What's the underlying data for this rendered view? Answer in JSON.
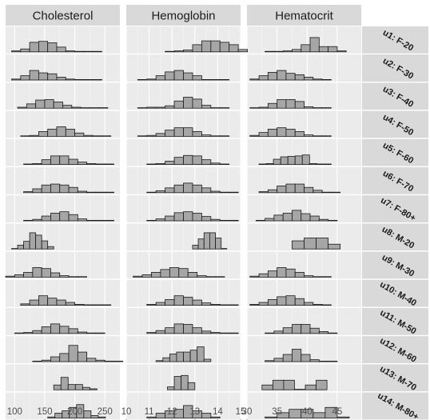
{
  "chart_data": {
    "type": "histogram-facet-grid",
    "columns": [
      {
        "label": "Cholesterol",
        "xlim": [
          85,
          275
        ],
        "ticks": [
          100,
          150,
          200,
          250
        ]
      },
      {
        "label": "Hemoglobin",
        "xlim": [
          10,
          15
        ],
        "ticks": [
          10,
          11,
          12,
          13,
          14,
          15
        ]
      },
      {
        "label": "Hematocrit",
        "xlim": [
          30,
          49
        ],
        "ticks": [
          30,
          35,
          40,
          45
        ]
      }
    ],
    "rows": [
      "u1: F-20",
      "u2: F-30",
      "u3: F-40",
      "u4: F-50",
      "u5: F-60",
      "u6: F-70",
      "u7: F-80+",
      "u8: M-20",
      "u9: M-30",
      "u10: M-40",
      "u11: M-50",
      "u12: M-60",
      "u13: M-70",
      "u14: M-80+"
    ],
    "max_relative_height": 1.0,
    "series": [
      {
        "row": "u1: F-20",
        "column": "Cholesterol",
        "x0": 95,
        "binwidth": 15,
        "counts": [
          0.04,
          0.12,
          0.4,
          0.44,
          0.38,
          0.2,
          0.04,
          0.02,
          0.02,
          0.02
        ]
      },
      {
        "row": "u1: F-20",
        "column": "Hemoglobin",
        "x0": 11.7,
        "binwidth": 0.4,
        "counts": [
          0.02,
          0.04,
          0.08,
          0.3,
          0.46,
          0.46,
          0.4,
          0.3,
          0.1
        ]
      },
      {
        "row": "u1: F-20",
        "column": "Hematocrit",
        "x0": 33,
        "binwidth": 1.5,
        "counts": [
          0.02,
          0.02,
          0.04,
          0.1,
          0.3,
          0.6,
          0.22,
          0.22,
          0.04
        ]
      },
      {
        "row": "u2: F-30",
        "column": "Cholesterol",
        "x0": 95,
        "binwidth": 15,
        "counts": [
          0.04,
          0.18,
          0.4,
          0.3,
          0.26,
          0.12,
          0.04,
          0.02,
          0.02,
          0.02
        ]
      },
      {
        "row": "u2: F-30",
        "column": "Hemoglobin",
        "x0": 10.5,
        "binwidth": 0.4,
        "counts": [
          0.02,
          0.04,
          0.18,
          0.34,
          0.4,
          0.3,
          0.18,
          0.02,
          0.02,
          0.02
        ]
      },
      {
        "row": "u2: F-30",
        "column": "Hematocrit",
        "x0": 30.5,
        "binwidth": 1.5,
        "counts": [
          0.04,
          0.18,
          0.32,
          0.4,
          0.28,
          0.22,
          0.12,
          0.04,
          0.02
        ]
      },
      {
        "row": "u3: F-40",
        "column": "Cholesterol",
        "x0": 105,
        "binwidth": 15,
        "counts": [
          0.04,
          0.18,
          0.34,
          0.36,
          0.26,
          0.12,
          0.04,
          0.02,
          0.02,
          0.02
        ]
      },
      {
        "row": "u3: F-40",
        "column": "Hemoglobin",
        "x0": 10.5,
        "binwidth": 0.4,
        "counts": [
          0.02,
          0.04,
          0.04,
          0.1,
          0.3,
          0.46,
          0.38,
          0.12,
          0.02,
          0.02
        ]
      },
      {
        "row": "u3: F-40",
        "column": "Hematocrit",
        "x0": 30.5,
        "binwidth": 1.5,
        "counts": [
          0.02,
          0.04,
          0.2,
          0.36,
          0.36,
          0.28,
          0.06,
          0.02,
          0.02
        ]
      },
      {
        "row": "u4: F-50",
        "column": "Cholesterol",
        "x0": 110,
        "binwidth": 15,
        "counts": [
          0.02,
          0.04,
          0.2,
          0.3,
          0.4,
          0.3,
          0.14,
          0.04,
          0.02,
          0.02
        ]
      },
      {
        "row": "u4: F-50",
        "column": "Hemoglobin",
        "x0": 10.5,
        "binwidth": 0.4,
        "counts": [
          0.02,
          0.04,
          0.12,
          0.26,
          0.36,
          0.36,
          0.2,
          0.06,
          0.02,
          0.02
        ]
      },
      {
        "row": "u4: F-50",
        "column": "Hematocrit",
        "x0": 30.5,
        "binwidth": 1.5,
        "counts": [
          0.04,
          0.16,
          0.3,
          0.36,
          0.3,
          0.2,
          0.06,
          0.02,
          0.02
        ]
      },
      {
        "row": "u5: F-60",
        "column": "Cholesterol",
        "x0": 115,
        "binwidth": 15,
        "counts": [
          0.02,
          0.04,
          0.2,
          0.36,
          0.36,
          0.22,
          0.1,
          0.04,
          0.02,
          0.02
        ]
      },
      {
        "row": "u5: F-60",
        "column": "Hemoglobin",
        "x0": 10.9,
        "binwidth": 0.4,
        "counts": [
          0.02,
          0.04,
          0.14,
          0.3,
          0.38,
          0.36,
          0.2,
          0.06,
          0.02
        ]
      },
      {
        "row": "u5: F-60",
        "column": "Hematocrit",
        "x0": 32,
        "binwidth": 1.2,
        "counts": [
          0.02,
          0.04,
          0.22,
          0.32,
          0.34,
          0.36,
          0.4,
          0.04,
          0.02,
          0.02
        ]
      },
      {
        "row": "u6: F-70",
        "column": "Cholesterol",
        "x0": 115,
        "binwidth": 15,
        "counts": [
          0.04,
          0.16,
          0.32,
          0.36,
          0.32,
          0.22,
          0.06,
          0.02,
          0.02,
          0.02
        ]
      },
      {
        "row": "u6: F-70",
        "column": "Hemoglobin",
        "x0": 10.9,
        "binwidth": 0.4,
        "counts": [
          0.02,
          0.08,
          0.2,
          0.32,
          0.4,
          0.32,
          0.2,
          0.06,
          0.02,
          0.02
        ]
      },
      {
        "row": "u6: F-70",
        "column": "Hematocrit",
        "x0": 32,
        "binwidth": 1.5,
        "counts": [
          0.04,
          0.12,
          0.28,
          0.36,
          0.36,
          0.22,
          0.1,
          0.02,
          0.02
        ]
      },
      {
        "row": "u7: F-80+",
        "column": "Cholesterol",
        "x0": 115,
        "binwidth": 15,
        "counts": [
          0.02,
          0.06,
          0.2,
          0.32,
          0.38,
          0.26,
          0.08,
          0.02,
          0.02,
          0.02
        ]
      },
      {
        "row": "u7: F-80+",
        "column": "Hemoglobin",
        "x0": 10.9,
        "binwidth": 0.4,
        "counts": [
          0.02,
          0.08,
          0.2,
          0.34,
          0.38,
          0.32,
          0.18,
          0.06,
          0.02,
          0.02
        ]
      },
      {
        "row": "u7: F-80+",
        "column": "Hematocrit",
        "x0": 31.5,
        "binwidth": 1.5,
        "counts": [
          0.02,
          0.1,
          0.24,
          0.32,
          0.44,
          0.3,
          0.2,
          0.06,
          0.02
        ]
      },
      {
        "row": "u8: M-20",
        "column": "Cholesterol",
        "x0": 95,
        "binwidth": 10,
        "counts": [
          0.02,
          0.16,
          0.32,
          0.68,
          0.58,
          0.34,
          0.1
        ]
      },
      {
        "row": "u8: M-20",
        "column": "Hemoglobin",
        "x0": 12.9,
        "binwidth": 0.25,
        "counts": [
          0.16,
          0.42,
          0.68,
          0.68,
          0.46,
          0.02
        ]
      },
      {
        "row": "u8: M-20",
        "column": "Hematocrit",
        "x0": 37.5,
        "binwidth": 2,
        "counts": [
          0.34,
          0.46,
          0.46,
          0.2
        ]
      },
      {
        "row": "u9: M-30",
        "column": "Cholesterol",
        "x0": 85,
        "binwidth": 15,
        "counts": [
          0.04,
          0.1,
          0.2,
          0.4,
          0.36,
          0.18,
          0.06,
          0.02,
          0.02
        ]
      },
      {
        "row": "u9: M-30",
        "column": "Hemoglobin",
        "x0": 10.3,
        "binwidth": 0.4,
        "counts": [
          0.04,
          0.1,
          0.2,
          0.32,
          0.4,
          0.36,
          0.2,
          0.06,
          0.02,
          0.02
        ]
      },
      {
        "row": "u9: M-30",
        "column": "Hematocrit",
        "x0": 30.5,
        "binwidth": 1.5,
        "counts": [
          0.04,
          0.14,
          0.26,
          0.4,
          0.34,
          0.2,
          0.06,
          0.02,
          0.02
        ]
      },
      {
        "row": "u10: M-40",
        "column": "Cholesterol",
        "x0": 110,
        "binwidth": 15,
        "counts": [
          0.06,
          0.22,
          0.4,
          0.3,
          0.22,
          0.12,
          0.04,
          0.02,
          0.02,
          0.02
        ]
      },
      {
        "row": "u10: M-40",
        "column": "Hemoglobin",
        "x0": 10.9,
        "binwidth": 0.4,
        "counts": [
          0.04,
          0.12,
          0.24,
          0.4,
          0.34,
          0.22,
          0.1,
          0.04,
          0.02,
          0.02
        ]
      },
      {
        "row": "u10: M-40",
        "column": "Hematocrit",
        "x0": 30.5,
        "binwidth": 1.5,
        "counts": [
          0.04,
          0.12,
          0.24,
          0.36,
          0.4,
          0.28,
          0.12,
          0.04,
          0.02
        ]
      },
      {
        "row": "u11: M-50",
        "column": "Cholesterol",
        "x0": 100,
        "binwidth": 15,
        "counts": [
          0.02,
          0.04,
          0.12,
          0.28,
          0.4,
          0.3,
          0.2,
          0.06,
          0.02,
          0.02
        ]
      },
      {
        "row": "u11: M-50",
        "column": "Hemoglobin",
        "x0": 10.9,
        "binwidth": 0.4,
        "counts": [
          0.04,
          0.12,
          0.24,
          0.4,
          0.38,
          0.24,
          0.1,
          0.04,
          0.02,
          0.02
        ]
      },
      {
        "row": "u11: M-50",
        "column": "Hematocrit",
        "x0": 33,
        "binwidth": 1.5,
        "counts": [
          0.02,
          0.1,
          0.24,
          0.38,
          0.38,
          0.22,
          0.08,
          0.02
        ]
      },
      {
        "row": "u12: M-60",
        "column": "Cholesterol",
        "x0": 130,
        "binwidth": 15,
        "counts": [
          0.02,
          0.06,
          0.2,
          0.34,
          0.68,
          0.4,
          0.14,
          0.06,
          0.02,
          0.02
        ]
      },
      {
        "row": "u12: M-60",
        "column": "Hemoglobin",
        "x0": 11.3,
        "binwidth": 0.3,
        "counts": [
          0.04,
          0.16,
          0.32,
          0.4,
          0.4,
          0.48,
          0.62,
          0.1
        ]
      },
      {
        "row": "u12: M-60",
        "column": "Hematocrit",
        "x0": 33,
        "binwidth": 1.5,
        "counts": [
          0.04,
          0.14,
          0.3,
          0.52,
          0.3,
          0.08,
          0.02,
          0.02
        ]
      },
      {
        "row": "u13: M-70",
        "column": "Cholesterol",
        "x0": 165,
        "binwidth": 12,
        "counts": [
          0.2,
          0.52,
          0.22,
          0.22,
          0.1,
          0.04
        ]
      },
      {
        "row": "u13: M-70",
        "column": "Hemoglobin",
        "x0": 11.8,
        "binwidth": 0.3,
        "counts": [
          0.12,
          0.56,
          0.6,
          0.3
        ]
      },
      {
        "row": "u13: M-70",
        "column": "Hematocrit",
        "x0": 32.5,
        "binwidth": 1.8,
        "counts": [
          0.2,
          0.4,
          0.4,
          0.02,
          0.2,
          0.4
        ]
      },
      {
        "row": "u14: M-80+",
        "column": "Cholesterol",
        "x0": 155,
        "binwidth": 12,
        "counts": [
          0.04,
          0.2,
          0.3,
          0.44,
          0.56,
          0.3,
          0.1,
          0.04
        ]
      },
      {
        "row": "u14: M-80+",
        "column": "Hemoglobin",
        "x0": 10.9,
        "binwidth": 0.4,
        "counts": [
          0.04,
          0.2,
          0.3,
          0.36,
          0.52,
          0.3,
          0.2,
          0.04
        ]
      },
      {
        "row": "u14: M-80+",
        "column": "Hematocrit",
        "x0": 33,
        "binwidth": 2,
        "counts": [
          0.04,
          0.22,
          0.36,
          0.36,
          0.22,
          0.44,
          0.04
        ]
      }
    ],
    "grid": true,
    "legend": "none"
  },
  "colors": {
    "panel_background": "#ebebeb",
    "strip_background": "#d9d9d9",
    "grid_major": "#ffffff",
    "bar_fill": "#a6a6a6",
    "bar_stroke": "#1a1a1a",
    "axis_text": "#4d4d4d"
  }
}
